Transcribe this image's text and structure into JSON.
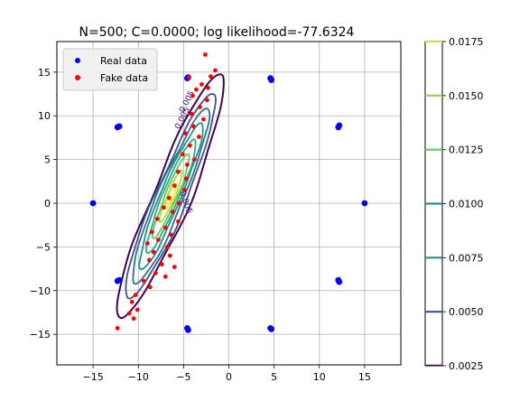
{
  "chart_data": {
    "type": "scatter",
    "title": "N=500; C=0.0000; log likelihood=-77.6324",
    "xlabel": "",
    "ylabel": "",
    "xlim": [
      -19,
      19
    ],
    "ylim": [
      -18.5,
      18.5
    ],
    "xticks": [
      -15,
      -10,
      -5,
      0,
      5,
      10,
      15
    ],
    "yticks": [
      -15,
      -10,
      -5,
      0,
      5,
      10,
      15
    ],
    "xtick_labels": [
      "−15",
      "−10",
      "−5",
      "0",
      "5",
      "10",
      "15"
    ],
    "ytick_labels": [
      "−15",
      "−10",
      "−5",
      "0",
      "5",
      "10",
      "15"
    ],
    "grid": true,
    "legend": {
      "placement": "top-left",
      "entries": [
        "Real data",
        "Fake data"
      ]
    },
    "series": [
      {
        "name": "Real data",
        "color": "#0000ff",
        "points": [
          [
            15,
            0
          ],
          [
            12.1,
            8.7
          ],
          [
            12.2,
            8.9
          ],
          [
            12.1,
            -8.8
          ],
          [
            12.2,
            -9.0
          ],
          [
            4.6,
            14.3
          ],
          [
            4.7,
            14.1
          ],
          [
            4.6,
            -14.3
          ],
          [
            4.7,
            -14.4
          ],
          [
            -4.6,
            14.3
          ],
          [
            -4.5,
            14.4
          ],
          [
            -4.6,
            -14.3
          ],
          [
            -4.5,
            -14.5
          ],
          [
            -12.1,
            8.8
          ],
          [
            -12.3,
            8.7
          ],
          [
            -12.1,
            -8.8
          ],
          [
            -12.3,
            -8.9
          ],
          [
            -15,
            0
          ]
        ]
      },
      {
        "name": "Fake data",
        "color": "#ff0000",
        "points": [
          [
            -2.6,
            17.0
          ],
          [
            -1.5,
            15.2
          ],
          [
            -2.0,
            14.5
          ],
          [
            -4.4,
            14.4
          ],
          [
            -3.0,
            13.6
          ],
          [
            -3.6,
            13.0
          ],
          [
            -2.3,
            13.2
          ],
          [
            -4.0,
            12.3
          ],
          [
            -2.4,
            11.8
          ],
          [
            -3.2,
            11.0
          ],
          [
            -4.1,
            10.2
          ],
          [
            -2.8,
            9.6
          ],
          [
            -3.9,
            8.8
          ],
          [
            -4.8,
            8.0
          ],
          [
            -3.3,
            7.6
          ],
          [
            -4.3,
            6.6
          ],
          [
            -5.1,
            5.6
          ],
          [
            -3.8,
            5.0
          ],
          [
            -4.6,
            4.4
          ],
          [
            -5.6,
            3.6
          ],
          [
            -4.7,
            2.8
          ],
          [
            -6.0,
            2.0
          ],
          [
            -4.9,
            1.5
          ],
          [
            -6.6,
            0.6
          ],
          [
            -5.5,
            0.0
          ],
          [
            -7.2,
            -0.5
          ],
          [
            -6.2,
            -1.0
          ],
          [
            -7.9,
            -1.8
          ],
          [
            -5.6,
            -2.1
          ],
          [
            -7.0,
            -2.8
          ],
          [
            -8.5,
            -3.3
          ],
          [
            -6.4,
            -3.6
          ],
          [
            -7.8,
            -4.2
          ],
          [
            -9.0,
            -4.6
          ],
          [
            -6.8,
            -5.0
          ],
          [
            -8.3,
            -5.6
          ],
          [
            -6.5,
            -6.0
          ],
          [
            -8.8,
            -6.5
          ],
          [
            -7.4,
            -7.0
          ],
          [
            -6.0,
            -7.3
          ],
          [
            -8.1,
            -8.0
          ],
          [
            -7.0,
            -8.4
          ],
          [
            -9.4,
            -8.9
          ],
          [
            -8.7,
            -9.6
          ],
          [
            -10.3,
            -10.5
          ],
          [
            -10.7,
            -11.3
          ],
          [
            -10.1,
            -12.2
          ],
          [
            -11.0,
            -12.6
          ],
          [
            -10.5,
            -13.2
          ],
          [
            -12.3,
            -14.3
          ]
        ]
      }
    ],
    "contour_levels": [
      0.0025,
      0.005,
      0.0075,
      0.01,
      0.0125,
      0.015,
      0.0175
    ],
    "contour_labels": [
      "0.005",
      "0.005",
      "0.005"
    ],
    "colorbar": {
      "range": [
        0.0025,
        0.0175
      ],
      "ticks": [
        0.0025,
        0.005,
        0.0075,
        0.01,
        0.0125,
        0.015,
        0.0175
      ],
      "tick_labels": [
        "0.0025",
        "0.0050",
        "0.0075",
        "0.0100",
        "0.0125",
        "0.0150",
        "0.0175"
      ],
      "colors": [
        "#440154",
        "#3b528b",
        "#21918c",
        "#21918c",
        "#5ec962",
        "#8fd744",
        "#fde725"
      ]
    }
  }
}
